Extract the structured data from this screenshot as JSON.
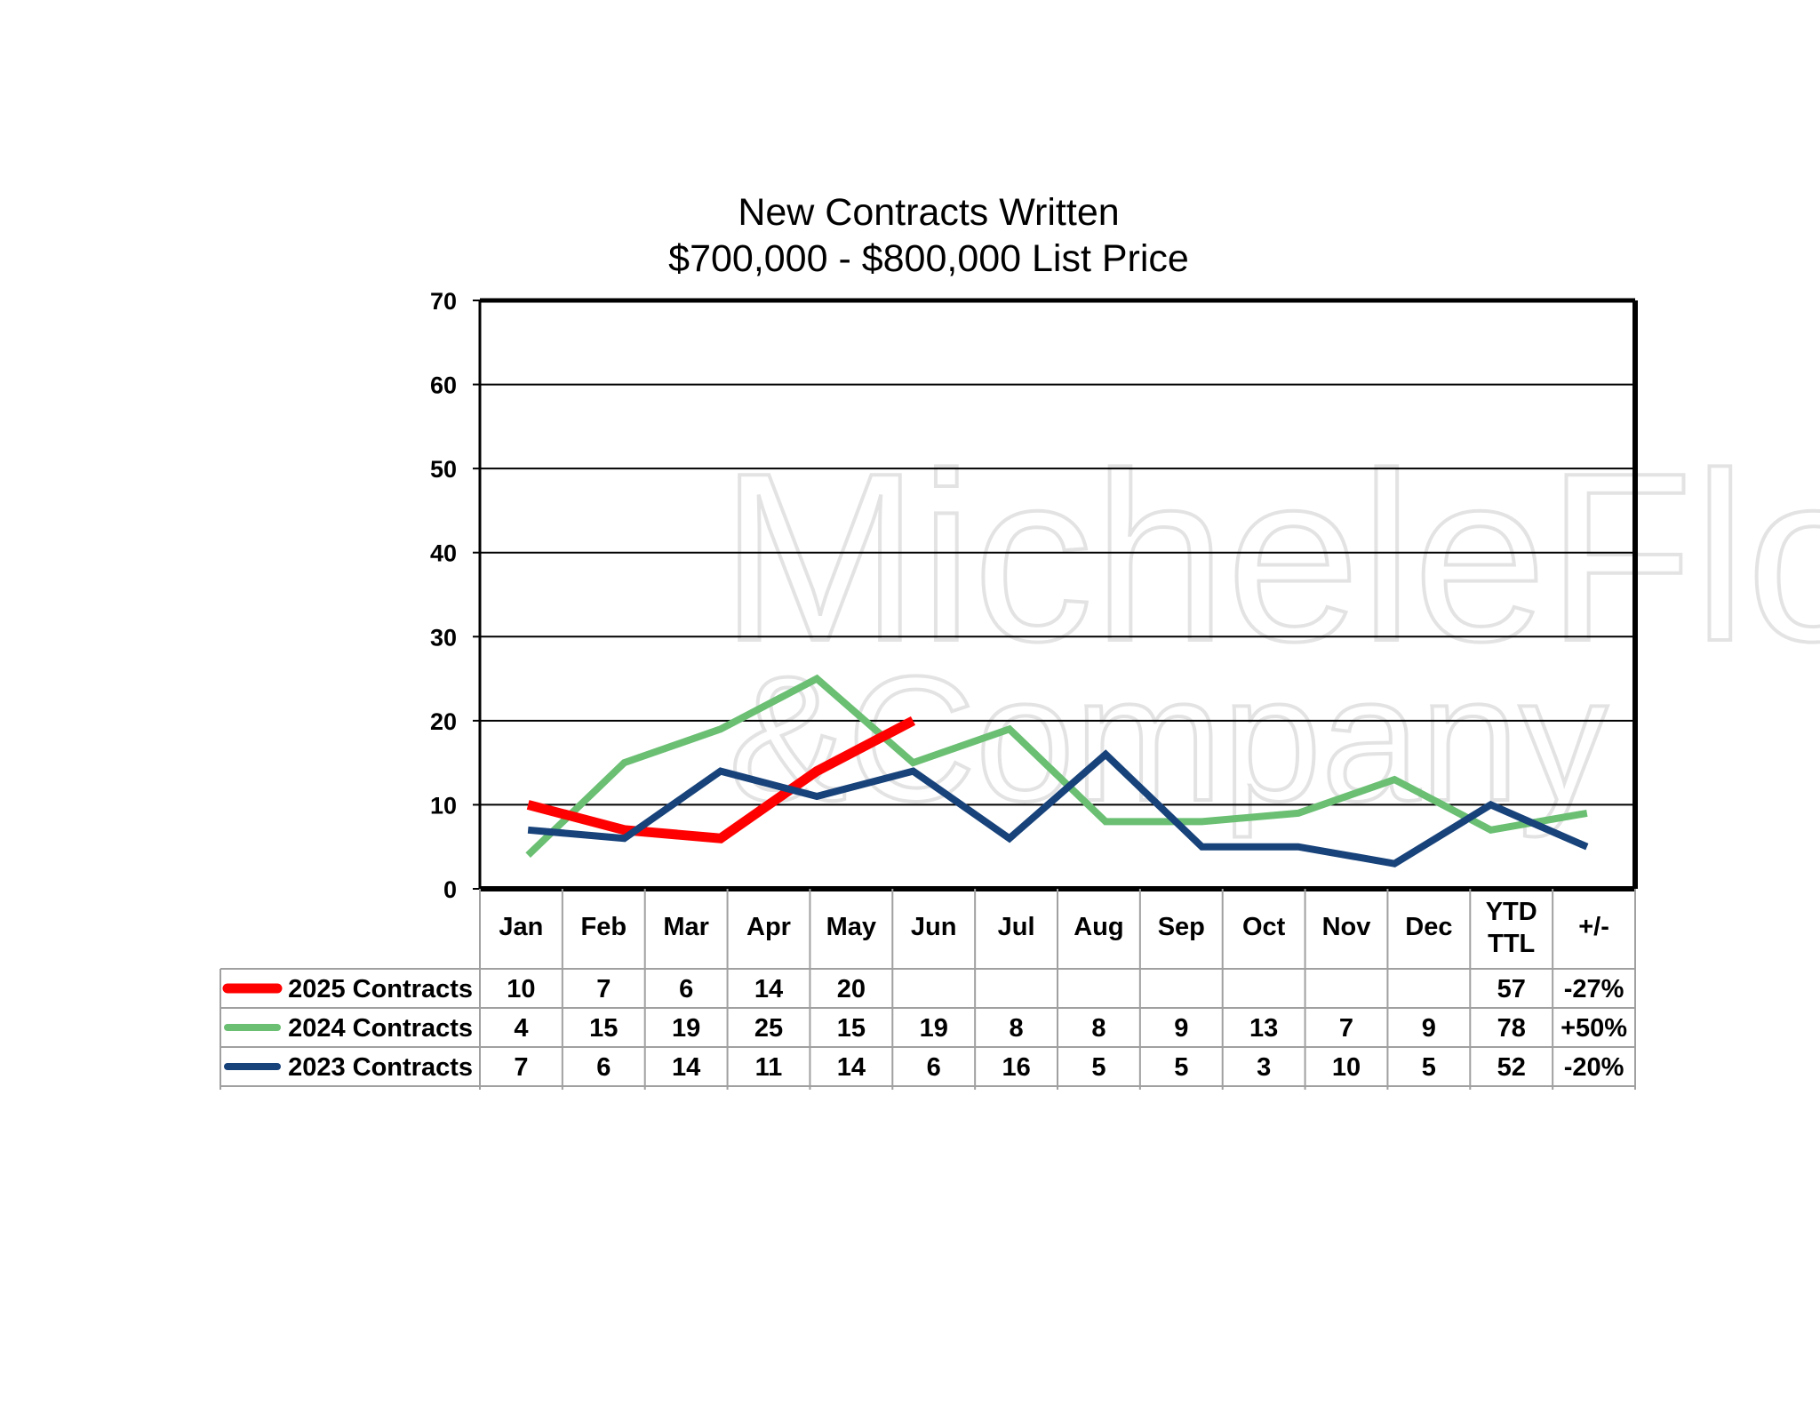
{
  "chart_data": {
    "type": "line",
    "title": "New Contracts Written",
    "subtitle": "$700,000 - $800,000 List Price",
    "categories": [
      "Jan",
      "Feb",
      "Mar",
      "Apr",
      "May",
      "Jun",
      "Jul",
      "Aug",
      "Sep",
      "Oct",
      "Nov",
      "Dec"
    ],
    "ylim": [
      0,
      70
    ],
    "yticks": [
      0,
      10,
      20,
      30,
      40,
      50,
      60,
      70
    ],
    "grid": true,
    "legend": "data-table-left",
    "table_extra_headers": [
      "YTD TTL",
      "+/-"
    ],
    "series": [
      {
        "name": "2025 Contracts",
        "color": "#ff0000",
        "values": [
          10,
          7,
          6,
          14,
          20,
          null,
          null,
          null,
          null,
          null,
          null,
          null
        ],
        "ytd": "57",
        "change": "-27%"
      },
      {
        "name": "2024 Contracts",
        "color": "#6abf73",
        "values": [
          4,
          15,
          19,
          25,
          15,
          19,
          8,
          8,
          9,
          13,
          7,
          9
        ],
        "ytd": "78",
        "change": "+50%"
      },
      {
        "name": "2023 Contracts",
        "color": "#17427a",
        "values": [
          7,
          6,
          14,
          11,
          14,
          6,
          16,
          5,
          5,
          3,
          10,
          5
        ],
        "ytd": "52",
        "change": "-20%"
      }
    ]
  },
  "watermark": {
    "line1": "MicheleFlory",
    "line2": "&Company"
  }
}
